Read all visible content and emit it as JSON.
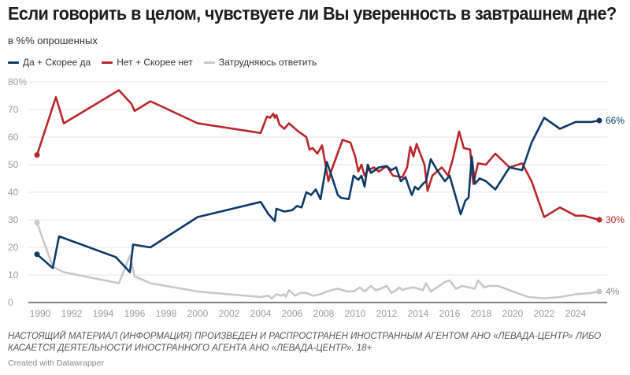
{
  "header": {
    "title": "Если говорить в целом, чувствуете ли Вы уверенность в завтрашнем дне?",
    "subtitle": "в %% опрошенных"
  },
  "legend": [
    {
      "label": "Да + Скорее да",
      "color": "#0f3a66"
    },
    {
      "label": "Нет + Скорее нет",
      "color": "#b9262b"
    },
    {
      "label": "Затрудняюсь ответить",
      "color": "#c8c8c8"
    }
  ],
  "footer": {
    "notes_line1": "НАСТОЯЩИЙ МАТЕРИАЛ (ИНФОРМАЦИЯ) ПРОИЗВЕДЕН И РАСПРОСТРАНЕН ИНОСТРАННЫМ АГЕНТОМ АНО «ЛЕВАДА-ЦЕНТР» ЛИБО",
    "notes_line2": "КАСАЕТСЯ ДЕЯТЕЛЬНОСТИ ИНОСТРАННОГО АГЕНТА АНО «ЛЕВАДА-ЦЕНТР». 18+",
    "credit": "Created with Datawrapper"
  },
  "chart_data": {
    "type": "line",
    "title": "Если говорить в целом, чувствуете ли Вы уверенность в завтрашнем дне?",
    "subtitle": "в %% опрошенных",
    "xlabel": "",
    "ylabel": "",
    "xlim": [
      1989.3,
      2026
    ],
    "ylim": [
      0,
      80
    ],
    "x_ticks": [
      1990,
      1992,
      1994,
      1996,
      1998,
      2000,
      2002,
      2004,
      2006,
      2008,
      2010,
      2012,
      2014,
      2016,
      2018,
      2020,
      2022,
      2024
    ],
    "y_ticks": [
      0,
      10,
      20,
      30,
      40,
      50,
      60,
      70,
      80
    ],
    "y_tick_labels": [
      "0",
      "10",
      "20",
      "30",
      "40",
      "50",
      "60",
      "70",
      "80%"
    ],
    "grid": true,
    "legend_position": "top-left",
    "series": [
      {
        "name": "Да + Скорее да",
        "color": "#0f3a66",
        "end_label": "66%",
        "points": [
          [
            1989.8,
            17.5
          ],
          [
            1990.8,
            12.5
          ],
          [
            1991.2,
            24
          ],
          [
            1994.8,
            16.5
          ],
          [
            1995.7,
            11
          ],
          [
            1995.9,
            21
          ],
          [
            1997,
            20
          ],
          [
            2000,
            31
          ],
          [
            2004,
            36.5
          ],
          [
            2004.5,
            32
          ],
          [
            2004.9,
            29.5
          ],
          [
            2005,
            34
          ],
          [
            2005.5,
            33
          ],
          [
            2006,
            33.5
          ],
          [
            2006.3,
            35
          ],
          [
            2006.6,
            34.5
          ],
          [
            2006.9,
            40
          ],
          [
            2007.2,
            39
          ],
          [
            2007.5,
            41
          ],
          [
            2007.8,
            37.5
          ],
          [
            2008.2,
            51
          ],
          [
            2008.5,
            46
          ],
          [
            2008.9,
            39
          ],
          [
            2009.1,
            38
          ],
          [
            2009.6,
            37.5
          ],
          [
            2009.9,
            46
          ],
          [
            2010.2,
            44.5
          ],
          [
            2010.4,
            46
          ],
          [
            2010.6,
            42
          ],
          [
            2010.8,
            50
          ],
          [
            2011,
            47
          ],
          [
            2011.5,
            49
          ],
          [
            2012,
            49.5
          ],
          [
            2012.3,
            48
          ],
          [
            2012.6,
            49
          ],
          [
            2012.9,
            44
          ],
          [
            2013.2,
            45.5
          ],
          [
            2013.4,
            42
          ],
          [
            2013.6,
            39
          ],
          [
            2013.8,
            42
          ],
          [
            2014,
            41
          ],
          [
            2014.3,
            43
          ],
          [
            2014.5,
            44
          ],
          [
            2014.8,
            52
          ],
          [
            2015.2,
            48
          ],
          [
            2015.7,
            44
          ],
          [
            2016,
            46
          ],
          [
            2016.3,
            40
          ],
          [
            2016.7,
            32
          ],
          [
            2017,
            37
          ],
          [
            2017.2,
            38
          ],
          [
            2017.4,
            53
          ],
          [
            2017.6,
            43
          ],
          [
            2017.9,
            45
          ],
          [
            2018.3,
            44
          ],
          [
            2018.9,
            41
          ],
          [
            2019.8,
            49
          ],
          [
            2020.6,
            48
          ],
          [
            2021.2,
            58
          ],
          [
            2022,
            67
          ],
          [
            2023,
            63
          ],
          [
            2024,
            65.5
          ],
          [
            2025,
            65.5
          ],
          [
            2025.5,
            66
          ]
        ]
      },
      {
        "name": "Нет + Скорее нет",
        "color": "#b9262b",
        "end_label": "30%",
        "points": [
          [
            1989.8,
            53.5
          ],
          [
            1991,
            74.5
          ],
          [
            1991.5,
            65
          ],
          [
            1995,
            77
          ],
          [
            1995.8,
            72
          ],
          [
            1996,
            69.5
          ],
          [
            1997,
            73
          ],
          [
            2000,
            65
          ],
          [
            2004,
            61.5
          ],
          [
            2004.4,
            67.5
          ],
          [
            2004.6,
            67
          ],
          [
            2004.8,
            68.5
          ],
          [
            2004.9,
            67
          ],
          [
            2005,
            68
          ],
          [
            2005.2,
            64.5
          ],
          [
            2005.5,
            63
          ],
          [
            2005.8,
            65
          ],
          [
            2006.1,
            63.5
          ],
          [
            2006.4,
            62
          ],
          [
            2006.9,
            60
          ],
          [
            2007.1,
            55.5
          ],
          [
            2007.3,
            56
          ],
          [
            2007.6,
            54
          ],
          [
            2007.9,
            57
          ],
          [
            2008.3,
            44
          ],
          [
            2008.5,
            48
          ],
          [
            2009.2,
            59
          ],
          [
            2009.7,
            58
          ],
          [
            2010,
            53
          ],
          [
            2010.2,
            47.5
          ],
          [
            2010.4,
            50
          ],
          [
            2010.6,
            46
          ],
          [
            2010.8,
            48
          ],
          [
            2011.2,
            49
          ],
          [
            2011.5,
            47.5
          ],
          [
            2012,
            49.5
          ],
          [
            2012.4,
            46
          ],
          [
            2013,
            45.5
          ],
          [
            2013.3,
            49
          ],
          [
            2013.5,
            56.5
          ],
          [
            2013.7,
            53
          ],
          [
            2013.9,
            57.5
          ],
          [
            2014.2,
            53
          ],
          [
            2014.4,
            50
          ],
          [
            2014.6,
            40.5
          ],
          [
            2014.9,
            46
          ],
          [
            2015.3,
            48
          ],
          [
            2015.5,
            49
          ],
          [
            2015.9,
            46
          ],
          [
            2016.2,
            52
          ],
          [
            2016.6,
            62
          ],
          [
            2016.9,
            56
          ],
          [
            2017.3,
            55.5
          ],
          [
            2017.5,
            43
          ],
          [
            2017.8,
            50.5
          ],
          [
            2018.3,
            50
          ],
          [
            2018.9,
            54
          ],
          [
            2019.8,
            49
          ],
          [
            2020.6,
            50.5
          ],
          [
            2021.2,
            44
          ],
          [
            2022,
            31
          ],
          [
            2023,
            34.5
          ],
          [
            2024,
            31.5
          ],
          [
            2024.5,
            31.5
          ],
          [
            2025.5,
            30
          ]
        ]
      },
      {
        "name": "Затрудняюсь ответить",
        "color": "#c8c8c8",
        "end_label": "4%",
        "points": [
          [
            1989.8,
            29
          ],
          [
            1990.8,
            13
          ],
          [
            1991.5,
            11
          ],
          [
            1995,
            7
          ],
          [
            1995.7,
            17
          ],
          [
            1996,
            9.5
          ],
          [
            1997,
            7
          ],
          [
            2000,
            4
          ],
          [
            2004,
            2
          ],
          [
            2004.5,
            2.5
          ],
          [
            2004.7,
            1.5
          ],
          [
            2005,
            3
          ],
          [
            2005.3,
            2.5
          ],
          [
            2005.5,
            3
          ],
          [
            2005.6,
            2
          ],
          [
            2005.8,
            4.5
          ],
          [
            2006.2,
            2.5
          ],
          [
            2006.5,
            3.5
          ],
          [
            2006.9,
            3.5
          ],
          [
            2007.3,
            2.5
          ],
          [
            2007.8,
            3
          ],
          [
            2008.2,
            4
          ],
          [
            2008.5,
            4.5
          ],
          [
            2008.9,
            5
          ],
          [
            2009.5,
            4
          ],
          [
            2009.9,
            4
          ],
          [
            2010.3,
            5.5
          ],
          [
            2010.6,
            4
          ],
          [
            2011,
            6
          ],
          [
            2011.3,
            4.5
          ],
          [
            2011.6,
            5
          ],
          [
            2012,
            6
          ],
          [
            2012.3,
            3.5
          ],
          [
            2012.6,
            4.5
          ],
          [
            2012.8,
            5.5
          ],
          [
            2013,
            4.5
          ],
          [
            2013.2,
            5
          ],
          [
            2013.7,
            5.5
          ],
          [
            2014,
            5
          ],
          [
            2014.3,
            4.5
          ],
          [
            2014.5,
            7
          ],
          [
            2014.8,
            4
          ],
          [
            2015.2,
            5.5
          ],
          [
            2015.7,
            7.5
          ],
          [
            2016,
            8
          ],
          [
            2016.4,
            5
          ],
          [
            2016.8,
            6
          ],
          [
            2017.2,
            5.5
          ],
          [
            2017.6,
            5
          ],
          [
            2017.8,
            8
          ],
          [
            2018.2,
            5.5
          ],
          [
            2018.5,
            6
          ],
          [
            2019.1,
            6
          ],
          [
            2020,
            4
          ],
          [
            2021,
            2
          ],
          [
            2022,
            1.5
          ],
          [
            2023,
            2
          ],
          [
            2024,
            3
          ],
          [
            2025,
            3.5
          ],
          [
            2025.5,
            4
          ]
        ]
      }
    ]
  }
}
